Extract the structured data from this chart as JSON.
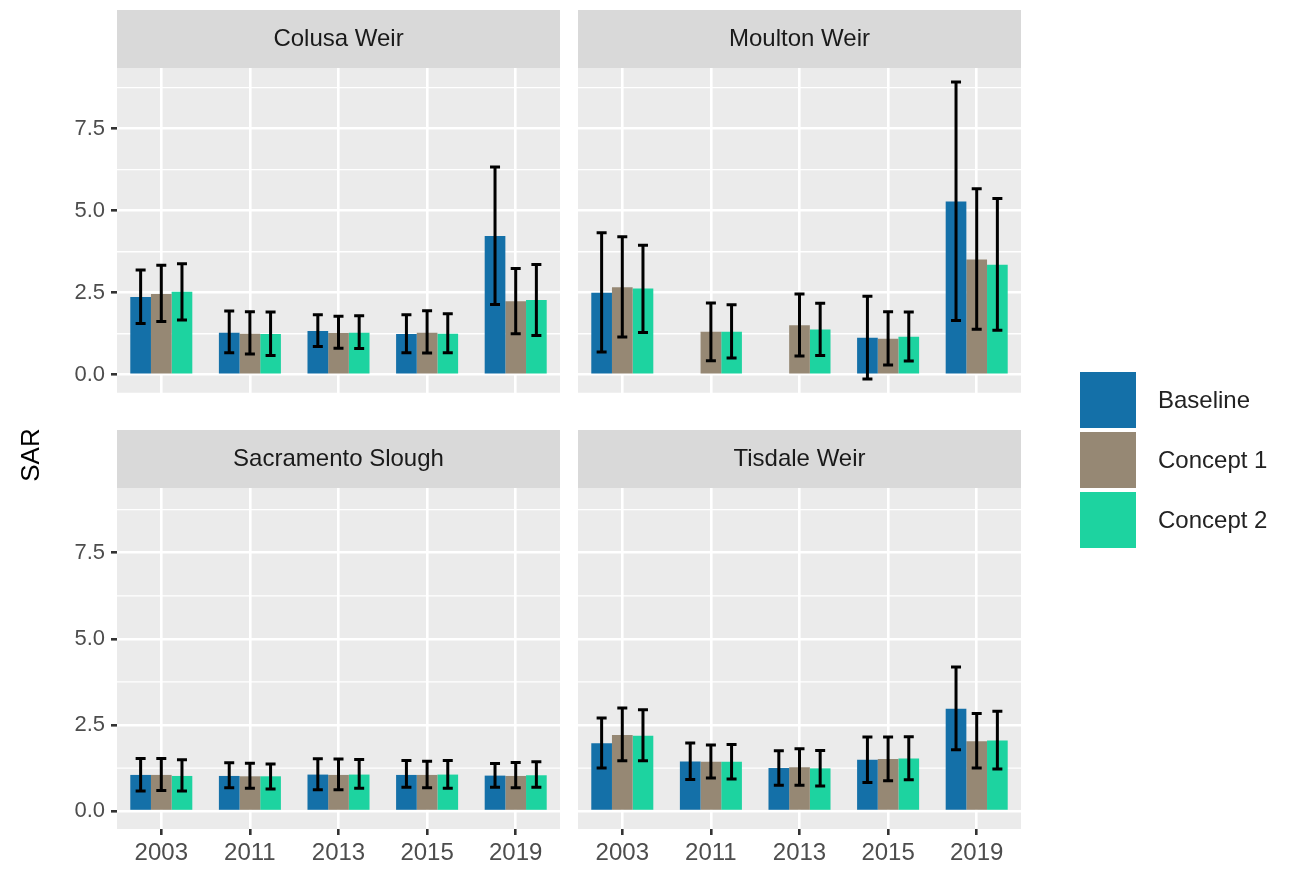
{
  "chart_data": [
    {
      "type": "bar",
      "title": "Colusa Weir",
      "ylabel": "SAR",
      "legend": "right",
      "grid": true,
      "tick_labels": "y",
      "categories": [
        "2003",
        "2011",
        "2013",
        "2015",
        "2019"
      ],
      "ylim": [
        -0.55,
        9.35
      ],
      "yticks": [
        {
          "value": 0,
          "label": "0.0"
        },
        {
          "value": 2.5,
          "label": "2.5"
        },
        {
          "value": 5,
          "label": "5.0"
        },
        {
          "value": 7.5,
          "label": "7.5"
        }
      ],
      "series": [
        {
          "name": "Baseline",
          "color": "#1470a8",
          "values": [
            2.37,
            1.28,
            1.33,
            1.24,
            4.23
          ],
          "errors": [
            [
              1.56,
              3.19
            ],
            [
              0.67,
              1.94
            ],
            [
              0.86,
              1.83
            ],
            [
              0.67,
              1.83
            ],
            [
              2.14,
              6.33
            ]
          ]
        },
        {
          "name": "Concept 1",
          "color": "#968874",
          "values": [
            2.46,
            1.25,
            1.27,
            1.28,
            2.24
          ],
          "errors": [
            [
              1.62,
              3.34
            ],
            [
              0.63,
              1.92
            ],
            [
              0.81,
              1.78
            ],
            [
              0.66,
              1.95
            ],
            [
              1.25,
              3.24
            ]
          ]
        },
        {
          "name": "Concept 2",
          "color": "#1dd3a0",
          "values": [
            2.53,
            1.24,
            1.28,
            1.25,
            2.28
          ],
          "errors": [
            [
              1.67,
              3.38
            ],
            [
              0.59,
              1.91
            ],
            [
              0.8,
              1.8
            ],
            [
              0.67,
              1.86
            ],
            [
              1.2,
              3.36
            ]
          ]
        }
      ]
    },
    {
      "type": "bar",
      "title": "Moulton Weir",
      "grid": true,
      "tick_labels": false,
      "categories": [
        "2003",
        "2011",
        "2013",
        "2015",
        "2019"
      ],
      "ylim": [
        -0.55,
        9.35
      ],
      "yticks": [
        0,
        2.5,
        5,
        7.5
      ],
      "series": [
        {
          "color": "#1470a8",
          "values": [
            2.5,
            null,
            null,
            1.13,
            5.28
          ],
          "errors": [
            [
              0.69,
              4.33
            ],
            null,
            null,
            [
              -0.13,
              2.39
            ],
            [
              1.65,
              8.92
            ]
          ]
        },
        {
          "color": "#968874",
          "values": [
            2.67,
            1.31,
            1.51,
            1.1,
            3.51
          ],
          "errors": [
            [
              1.15,
              4.21
            ],
            [
              0.43,
              2.19
            ],
            [
              0.57,
              2.46
            ],
            [
              0.3,
              1.92
            ],
            [
              1.39,
              5.67
            ]
          ]
        },
        {
          "color": "#1dd3a0",
          "values": [
            2.63,
            1.31,
            1.38,
            1.16,
            3.35
          ],
          "errors": [
            [
              1.29,
              3.95
            ],
            [
              0.51,
              2.13
            ],
            [
              0.59,
              2.18
            ],
            [
              0.42,
              1.91
            ],
            [
              1.36,
              5.37
            ]
          ]
        }
      ]
    },
    {
      "type": "bar",
      "title": "Sacramento Slough",
      "grid": true,
      "categories": [
        "2003",
        "2011",
        "2013",
        "2015",
        "2019"
      ],
      "ylim": [
        -0.52,
        9.38
      ],
      "yticks": [
        {
          "value": 0,
          "label": "0.0"
        },
        {
          "value": 2.5,
          "label": "2.5"
        },
        {
          "value": 5,
          "label": "5.0"
        },
        {
          "value": 7.5,
          "label": "7.5"
        }
      ],
      "series": [
        {
          "color": "#1470a8",
          "values": [
            1.05,
            1.02,
            1.06,
            1.05,
            1.03
          ],
          "errors": [
            [
              0.58,
              1.53
            ],
            [
              0.68,
              1.4
            ],
            [
              0.62,
              1.52
            ],
            [
              0.69,
              1.47
            ],
            [
              0.69,
              1.38
            ]
          ]
        },
        {
          "color": "#968874",
          "values": [
            1.05,
            1.01,
            1.05,
            1.05,
            1.02
          ],
          "errors": [
            [
              0.6,
              1.53
            ],
            [
              0.66,
              1.39
            ],
            [
              0.62,
              1.51
            ],
            [
              0.68,
              1.45
            ],
            [
              0.68,
              1.41
            ]
          ]
        },
        {
          "color": "#1dd3a0",
          "values": [
            1.02,
            1.01,
            1.06,
            1.06,
            1.04
          ],
          "errors": [
            [
              0.58,
              1.49
            ],
            [
              0.64,
              1.37
            ],
            [
              0.66,
              1.5
            ],
            [
              0.66,
              1.47
            ],
            [
              0.69,
              1.43
            ]
          ]
        }
      ]
    },
    {
      "type": "bar",
      "title": "Tisdale Weir",
      "grid": true,
      "tick_labels": "x",
      "categories": [
        "2003",
        "2011",
        "2013",
        "2015",
        "2019"
      ],
      "ylim": [
        -0.52,
        9.38
      ],
      "yticks": [
        0,
        2.5,
        5,
        7.5
      ],
      "series": [
        {
          "color": "#1470a8",
          "values": [
            1.97,
            1.44,
            1.25,
            1.49,
            2.97
          ],
          "errors": [
            [
              1.25,
              2.7
            ],
            [
              0.92,
              1.98
            ],
            [
              0.75,
              1.75
            ],
            [
              0.83,
              2.15
            ],
            [
              1.78,
              4.18
            ]
          ]
        },
        {
          "color": "#968874",
          "values": [
            2.21,
            1.43,
            1.27,
            1.51,
            2.03
          ],
          "errors": [
            [
              1.46,
              2.99
            ],
            [
              0.96,
              1.92
            ],
            [
              0.75,
              1.81
            ],
            [
              0.88,
              2.15
            ],
            [
              1.25,
              2.83
            ]
          ]
        },
        {
          "color": "#1dd3a0",
          "values": [
            2.19,
            1.43,
            1.24,
            1.53,
            2.05
          ],
          "errors": [
            [
              1.46,
              2.94
            ],
            [
              0.93,
              1.93
            ],
            [
              0.73,
              1.76
            ],
            [
              0.91,
              2.16
            ],
            [
              1.22,
              2.9
            ]
          ]
        }
      ]
    }
  ]
}
